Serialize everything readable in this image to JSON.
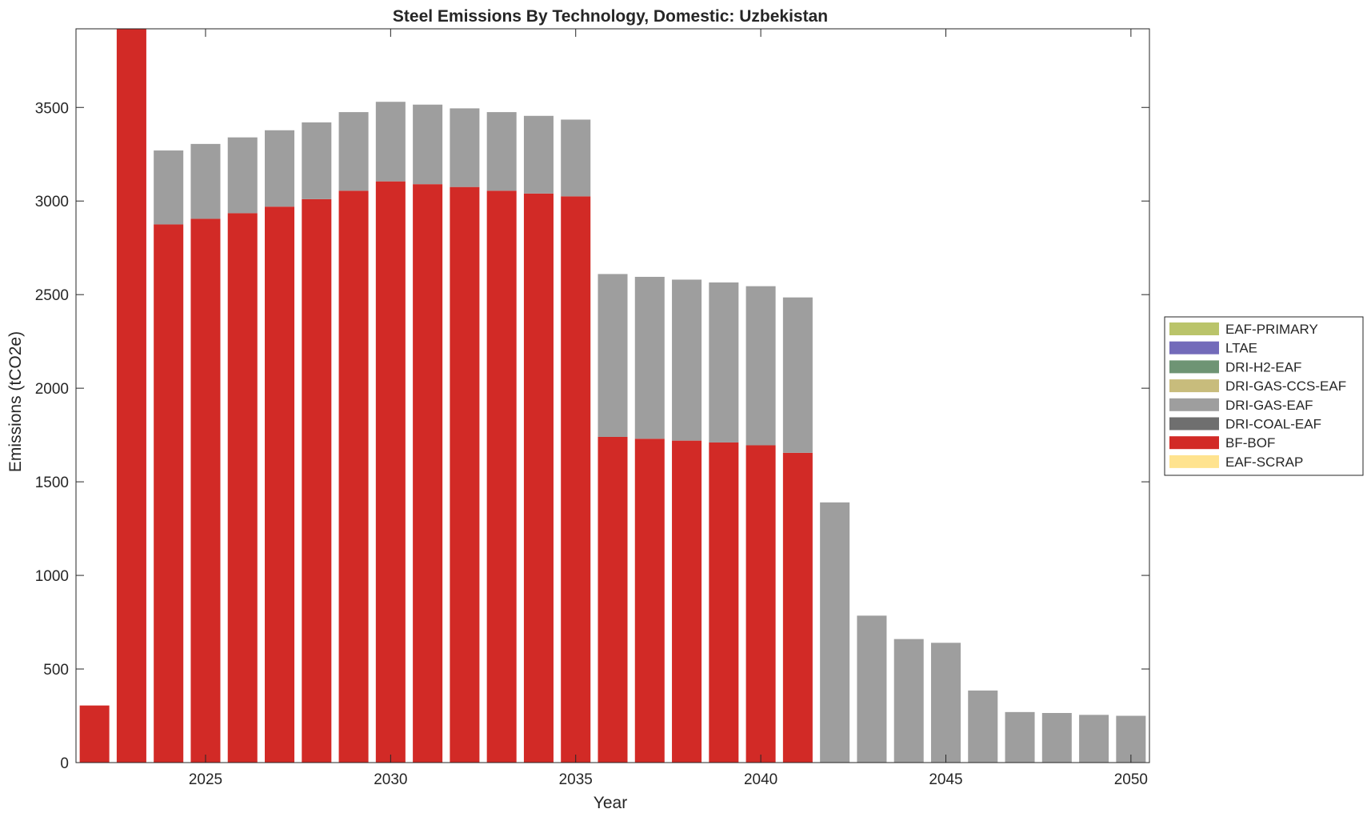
{
  "chart_data": {
    "type": "bar",
    "stacked": true,
    "title": "Steel Emissions By Technology, Domestic: Uzbekistan",
    "xlabel": "Year",
    "ylabel": "Emissions (tCO2e)",
    "xlim": [
      2021.5,
      2050.5
    ],
    "ylim": [
      0,
      3920
    ],
    "xticks": [
      2025,
      2030,
      2035,
      2040,
      2045,
      2050
    ],
    "yticks": [
      0,
      500,
      1000,
      1500,
      2000,
      2500,
      3000,
      3500
    ],
    "grid": false,
    "legend_position": "right, outside",
    "x": [
      2022,
      2023,
      2024,
      2025,
      2026,
      2027,
      2028,
      2029,
      2030,
      2031,
      2032,
      2033,
      2034,
      2035,
      2036,
      2037,
      2038,
      2039,
      2040,
      2041,
      2042,
      2043,
      2044,
      2045,
      2046,
      2047,
      2048,
      2049,
      2050
    ],
    "series": [
      {
        "name": "EAF-SCRAP",
        "color": "#ffe38f",
        "values": [
          0,
          0,
          0,
          0,
          0,
          0,
          0,
          0,
          0,
          0,
          0,
          0,
          0,
          0,
          0,
          0,
          0,
          0,
          0,
          0,
          0,
          0,
          0,
          0,
          0,
          0,
          0,
          0,
          0
        ]
      },
      {
        "name": "BF-BOF",
        "color": "#d22a26",
        "values": [
          305,
          3920,
          2875,
          2905,
          2935,
          2970,
          3010,
          3055,
          3105,
          3090,
          3075,
          3055,
          3040,
          3025,
          1740,
          1730,
          1720,
          1710,
          1695,
          1655,
          0,
          0,
          0,
          0,
          0,
          0,
          0,
          0,
          0
        ]
      },
      {
        "name": "DRI-COAL-EAF",
        "color": "#6f6f6f",
        "values": [
          0,
          0,
          0,
          0,
          0,
          0,
          0,
          0,
          0,
          0,
          0,
          0,
          0,
          0,
          0,
          0,
          0,
          0,
          0,
          0,
          0,
          0,
          0,
          0,
          0,
          0,
          0,
          0,
          0
        ]
      },
      {
        "name": "DRI-GAS-EAF",
        "color": "#9e9e9e",
        "values": [
          0,
          0,
          395,
          400,
          405,
          408,
          410,
          420,
          425,
          425,
          420,
          420,
          415,
          410,
          870,
          865,
          860,
          855,
          850,
          830,
          1390,
          785,
          660,
          640,
          385,
          270,
          265,
          255,
          250
        ]
      },
      {
        "name": "DRI-GAS-CCS-EAF",
        "color": "#c8bc7c",
        "values": [
          0,
          0,
          0,
          0,
          0,
          0,
          0,
          0,
          0,
          0,
          0,
          0,
          0,
          0,
          0,
          0,
          0,
          0,
          0,
          0,
          0,
          0,
          0,
          0,
          0,
          0,
          0,
          0,
          0
        ]
      },
      {
        "name": "DRI-H2-EAF",
        "color": "#6e9474",
        "values": [
          0,
          0,
          0,
          0,
          0,
          0,
          0,
          0,
          0,
          0,
          0,
          0,
          0,
          0,
          0,
          0,
          0,
          0,
          0,
          0,
          0,
          0,
          0,
          0,
          0,
          0,
          0,
          0,
          0
        ]
      },
      {
        "name": "LTAE",
        "color": "#736bba",
        "values": [
          0,
          0,
          0,
          0,
          0,
          0,
          0,
          0,
          0,
          0,
          0,
          0,
          0,
          0,
          0,
          0,
          0,
          0,
          0,
          0,
          0,
          0,
          0,
          0,
          0,
          0,
          0,
          0,
          0
        ]
      },
      {
        "name": "EAF-PRIMARY",
        "color": "#bac46a",
        "values": [
          0,
          0,
          0,
          0,
          0,
          0,
          0,
          0,
          0,
          0,
          0,
          0,
          0,
          0,
          0,
          0,
          0,
          0,
          0,
          0,
          0,
          0,
          0,
          0,
          0,
          0,
          0,
          0,
          0
        ]
      }
    ],
    "legend_order": [
      "EAF-PRIMARY",
      "LTAE",
      "DRI-H2-EAF",
      "DRI-GAS-CCS-EAF",
      "DRI-GAS-EAF",
      "DRI-COAL-EAF",
      "BF-BOF",
      "EAF-SCRAP"
    ]
  }
}
